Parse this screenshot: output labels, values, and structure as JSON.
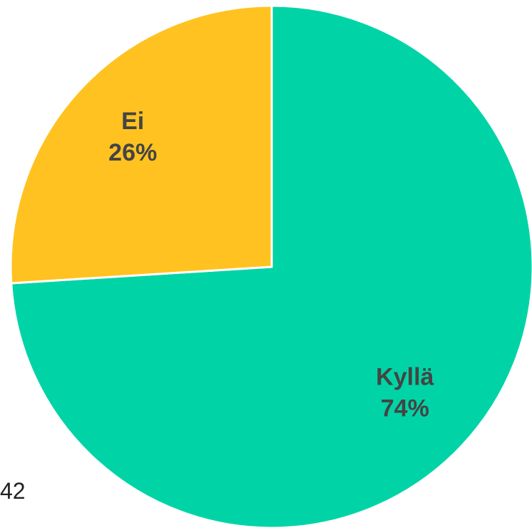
{
  "chart_data": {
    "type": "pie",
    "categories": [
      "Kyllä",
      "Ei"
    ],
    "values": [
      74,
      26
    ],
    "value_labels": [
      "74%",
      "26%"
    ],
    "colors": [
      "#00D4A6",
      "#FFC220"
    ],
    "start_angle_deg": 0,
    "direction": "clockwise",
    "legend": "none",
    "title": ""
  },
  "footnote": "42"
}
